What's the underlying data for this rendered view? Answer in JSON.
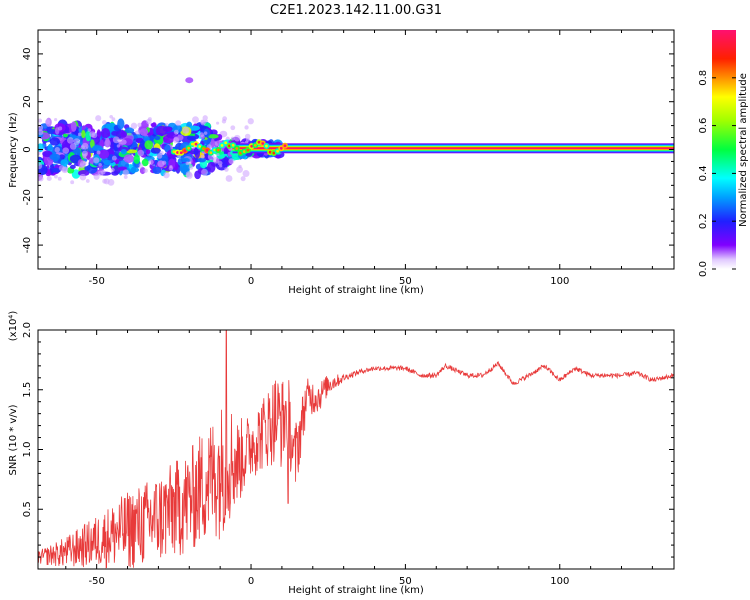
{
  "title": "C2E1.2023.142.11.00.G31",
  "chart_data": [
    {
      "type": "heatmap",
      "xlabel": "Height of straight line (km)",
      "ylabel": "Frequency (Hz)",
      "xlim": [
        -69,
        137
      ],
      "ylim": [
        -50,
        50
      ],
      "xticks": [
        -50,
        0,
        50,
        100
      ],
      "yticks": [
        -40,
        -20,
        0,
        20,
        40
      ],
      "colorbar": {
        "label": "Normalized spectral amplitude",
        "range": [
          0.0,
          1.0
        ],
        "ticks": [
          "0.0",
          "0.2",
          "0.4",
          "0.6",
          "0.8"
        ]
      },
      "features": {
        "band_center_hz": 0.5,
        "band_start_km": -6,
        "band_end_km": 137,
        "band_amplitude": 1.0,
        "noisy_region_km": [
          -69,
          -6
        ],
        "noisy_frequency_spread_hz": [
          -10,
          10
        ],
        "isolated_blob": {
          "x": -20,
          "y": 29,
          "amplitude": 0.1
        }
      }
    },
    {
      "type": "line",
      "xlabel": "Height of straight line (km)",
      "ylabel": "SNR (10 * v/v)",
      "exponent_label": "(x10⁴)",
      "xlim": [
        -69,
        137
      ],
      "ylim": [
        0,
        2.0
      ],
      "xticks": [
        -50,
        0,
        50,
        100
      ],
      "yticks": [
        0.5,
        1.0,
        1.5,
        2.0
      ],
      "series": [
        {
          "color": "#e83a3a",
          "x": [
            -69,
            -60,
            -50,
            -40,
            -30,
            -20,
            -15,
            -10,
            -8,
            -5,
            0,
            5,
            8,
            10,
            12,
            14,
            18,
            22,
            25,
            30,
            35,
            40,
            45,
            50,
            55,
            60,
            63,
            70,
            75,
            80,
            85,
            90,
            95,
            100,
            105,
            110,
            115,
            120,
            125,
            130,
            137
          ],
          "y": [
            0.1,
            0.15,
            0.25,
            0.35,
            0.45,
            0.6,
            0.75,
            0.85,
            1.0,
            0.9,
            1.05,
            1.2,
            1.3,
            1.25,
            1.35,
            0.9,
            1.45,
            1.45,
            1.55,
            1.6,
            1.65,
            1.68,
            1.68,
            1.68,
            1.62,
            1.62,
            1.7,
            1.62,
            1.62,
            1.72,
            1.55,
            1.62,
            1.7,
            1.58,
            1.68,
            1.62,
            1.62,
            1.62,
            1.64,
            1.58,
            1.62
          ],
          "noise_amplitude": [
            0.05,
            0.12,
            0.2,
            0.3,
            0.35,
            0.4,
            0.45,
            0.5,
            0.55,
            0.35,
            0.25,
            0.3,
            0.35,
            0.35,
            0.3,
            0.3,
            0.15,
            0.12,
            0.08,
            0.03,
            0.02,
            0.02,
            0.02,
            0.02,
            0.02,
            0.02,
            0.02,
            0.02,
            0.02,
            0.02,
            0.02,
            0.02,
            0.02,
            0.02,
            0.02,
            0.02,
            0.02,
            0.02,
            0.02,
            0.02,
            0.02
          ],
          "peak": {
            "x": -8,
            "y": 2.0
          },
          "dip": {
            "x": 12,
            "y": 0.55
          }
        }
      ]
    }
  ]
}
